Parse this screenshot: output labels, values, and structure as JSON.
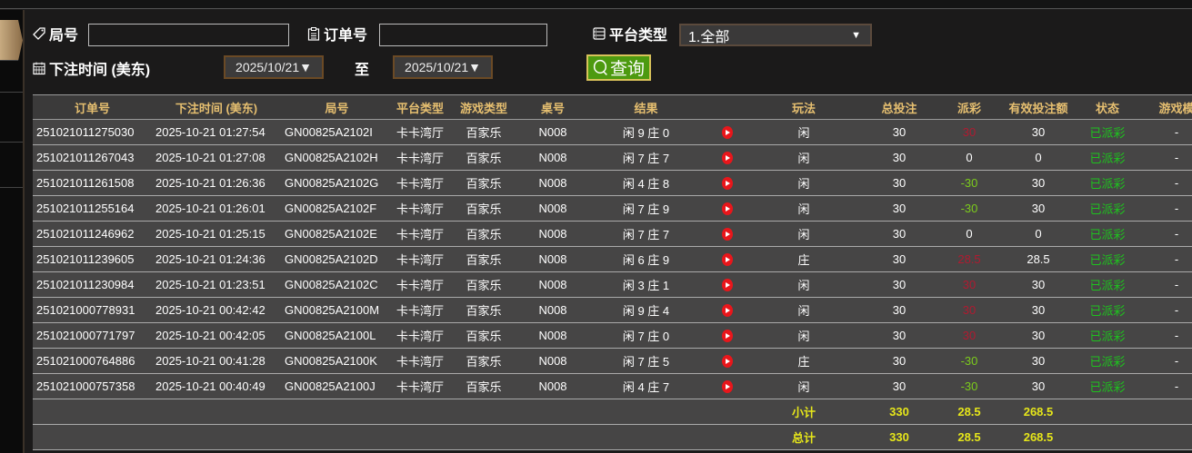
{
  "filters": {
    "round_label": "局号",
    "round_value": "",
    "order_label": "订单号",
    "order_value": "",
    "platform_label": "平台类型",
    "platform_value": "1.全部",
    "time_label": "下注时间 (美东)",
    "date_from": "2025/10/21▼",
    "to_label": "至",
    "date_to": "2025/10/21▼",
    "query_label": "查询"
  },
  "table": {
    "headers": [
      "订单号",
      "下注时间 (美东)",
      "局号",
      "平台类型",
      "游戏类型",
      "桌号",
      "结果",
      "",
      "玩法",
      "总投注",
      "派彩",
      "有效投注额",
      "状态",
      "游戏模"
    ],
    "rows": [
      [
        "251021011275030",
        "2025-10-21 01:27:54",
        "GN00825A2102I",
        "卡卡湾厅",
        "百家乐",
        "N008",
        "闲 9 庄 0",
        "闲",
        "30",
        "30",
        "30",
        "已派彩",
        "-",
        "red"
      ],
      [
        "251021011267043",
        "2025-10-21 01:27:08",
        "GN00825A2102H",
        "卡卡湾厅",
        "百家乐",
        "N008",
        "闲 7 庄 7",
        "闲",
        "30",
        "0",
        "0",
        "已派彩",
        "-",
        "white"
      ],
      [
        "251021011261508",
        "2025-10-21 01:26:36",
        "GN00825A2102G",
        "卡卡湾厅",
        "百家乐",
        "N008",
        "闲 4 庄 8",
        "闲",
        "30",
        "-30",
        "30",
        "已派彩",
        "-",
        "green"
      ],
      [
        "251021011255164",
        "2025-10-21 01:26:01",
        "GN00825A2102F",
        "卡卡湾厅",
        "百家乐",
        "N008",
        "闲 7 庄 9",
        "闲",
        "30",
        "-30",
        "30",
        "已派彩",
        "-",
        "green"
      ],
      [
        "251021011246962",
        "2025-10-21 01:25:15",
        "GN00825A2102E",
        "卡卡湾厅",
        "百家乐",
        "N008",
        "闲 7 庄 7",
        "闲",
        "30",
        "0",
        "0",
        "已派彩",
        "-",
        "white"
      ],
      [
        "251021011239605",
        "2025-10-21 01:24:36",
        "GN00825A2102D",
        "卡卡湾厅",
        "百家乐",
        "N008",
        "闲 6 庄 9",
        "庄",
        "30",
        "28.5",
        "28.5",
        "已派彩",
        "-",
        "red"
      ],
      [
        "251021011230984",
        "2025-10-21 01:23:51",
        "GN00825A2102C",
        "卡卡湾厅",
        "百家乐",
        "N008",
        "闲 3 庄 1",
        "闲",
        "30",
        "30",
        "30",
        "已派彩",
        "-",
        "red"
      ],
      [
        "251021000778931",
        "2025-10-21 00:42:42",
        "GN00825A2100M",
        "卡卡湾厅",
        "百家乐",
        "N008",
        "闲 9 庄 4",
        "闲",
        "30",
        "30",
        "30",
        "已派彩",
        "-",
        "red"
      ],
      [
        "251021000771797",
        "2025-10-21 00:42:05",
        "GN00825A2100L",
        "卡卡湾厅",
        "百家乐",
        "N008",
        "闲 7 庄 0",
        "闲",
        "30",
        "30",
        "30",
        "已派彩",
        "-",
        "red"
      ],
      [
        "251021000764886",
        "2025-10-21 00:41:28",
        "GN00825A2100K",
        "卡卡湾厅",
        "百家乐",
        "N008",
        "闲 7 庄 5",
        "庄",
        "30",
        "-30",
        "30",
        "已派彩",
        "-",
        "green"
      ],
      [
        "251021000757358",
        "2025-10-21 00:40:49",
        "GN00825A2100J",
        "卡卡湾厅",
        "百家乐",
        "N008",
        "闲 4 庄 7",
        "闲",
        "30",
        "-30",
        "30",
        "已派彩",
        "-",
        "green"
      ]
    ],
    "subtotal": {
      "label": "小计",
      "total_bet": "330",
      "payout": "28.5",
      "valid_bet": "268.5"
    },
    "grandtotal": {
      "label": "总计",
      "total_bet": "330",
      "payout": "28.5",
      "valid_bet": "268.5"
    }
  },
  "colors": {
    "red": "#b01a30",
    "green": "#7ccc1c",
    "status": "#1ec21e",
    "header_text": "#e6bf70",
    "summary": "#e6e61a",
    "query_button": "#4d9a10"
  }
}
